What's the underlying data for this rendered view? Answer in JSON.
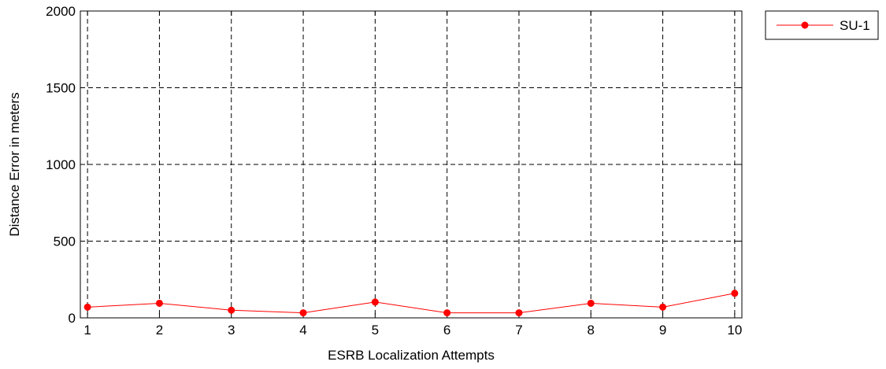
{
  "chart_data": {
    "type": "line",
    "title": "",
    "xlabel": "ESRB Localization Attempts",
    "ylabel": "Distance Error in meters",
    "x": [
      1,
      2,
      3,
      4,
      5,
      6,
      7,
      8,
      9,
      10
    ],
    "xlim": [
      0.9,
      10.1
    ],
    "ylim": [
      0,
      2000
    ],
    "xticks": [
      1,
      2,
      3,
      4,
      5,
      6,
      7,
      8,
      9,
      10
    ],
    "yticks": [
      0,
      500,
      1000,
      1500,
      2000
    ],
    "grid": true,
    "legend_position": "outside-top-right",
    "series": [
      {
        "name": "SU-1",
        "color": "#ff0000",
        "marker": "circle",
        "values": [
          70,
          95,
          50,
          33,
          103,
          33,
          33,
          95,
          70,
          160
        ]
      }
    ]
  }
}
